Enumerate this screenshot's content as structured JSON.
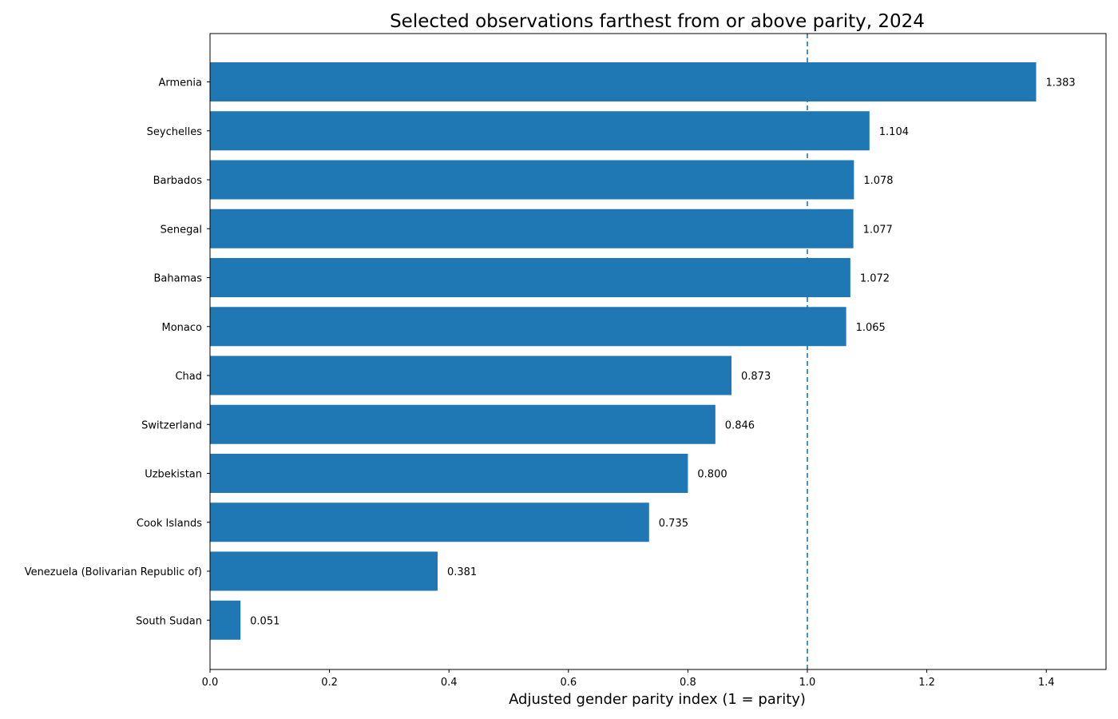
{
  "chart_data": {
    "type": "bar",
    "orientation": "horizontal",
    "title": "Selected observations farthest from or above parity, 2024",
    "xlabel": "Adjusted gender parity index (1 = parity)",
    "ylabel": "",
    "xlim": [
      0,
      1.5
    ],
    "xticks": [
      0.0,
      0.2,
      0.4,
      0.6,
      0.8,
      1.0,
      1.2,
      1.4
    ],
    "xtick_labels": [
      "0.0",
      "0.2",
      "0.4",
      "0.6",
      "0.8",
      "1.0",
      "1.2",
      "1.4"
    ],
    "grid": false,
    "reference_line": {
      "x": 1.0,
      "style": "dashed",
      "color": "#1f77b4"
    },
    "bar_color": "#1f77b4",
    "categories": [
      "Armenia",
      "Seychelles",
      "Barbados",
      "Senegal",
      "Bahamas",
      "Monaco",
      "Chad",
      "Switzerland",
      "Uzbekistan",
      "Cook Islands",
      "Venezuela (Bolivarian Republic of)",
      "South Sudan"
    ],
    "values": [
      1.383,
      1.104,
      1.078,
      1.077,
      1.072,
      1.065,
      0.873,
      0.846,
      0.8,
      0.735,
      0.381,
      0.051
    ],
    "value_labels": [
      "1.383",
      "1.104",
      "1.078",
      "1.077",
      "1.072",
      "1.065",
      "0.873",
      "0.846",
      "0.800",
      "0.735",
      "0.381",
      "0.051"
    ]
  }
}
